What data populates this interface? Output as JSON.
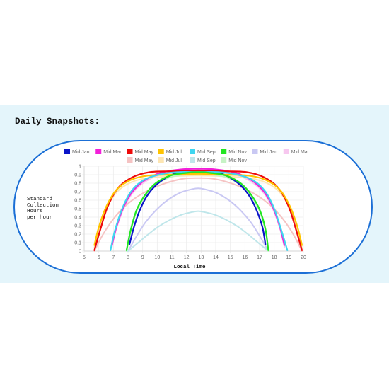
{
  "page": {
    "section_title": "Daily Snapshots:"
  },
  "chart_data": {
    "type": "line",
    "xlabel": "Local Time",
    "ylabel_lines": [
      "Standard",
      "Collection",
      "Hours",
      "per hour"
    ],
    "xlim": [
      5,
      20
    ],
    "ylim": [
      0,
      1
    ],
    "xticks": [
      5,
      6,
      7,
      8,
      9,
      10,
      11,
      12,
      13,
      14,
      15,
      16,
      17,
      18,
      19,
      20
    ],
    "yticks": [
      0,
      0.1,
      0.2,
      0.3,
      0.4,
      0.5,
      0.6,
      0.7,
      0.8,
      0.9,
      1.0
    ],
    "grid": true,
    "legend_position": "top",
    "series": [
      {
        "name": "Mid Jan",
        "color": "#0a14c8",
        "faded": false,
        "x": [
          8.1,
          8.4,
          8.8,
          9.3,
          10.0,
          11.0,
          12.0,
          12.8,
          13.6,
          14.6,
          15.6,
          16.3,
          16.8,
          17.2,
          17.4
        ],
        "y": [
          0.08,
          0.28,
          0.48,
          0.65,
          0.79,
          0.9,
          0.94,
          0.95,
          0.94,
          0.9,
          0.79,
          0.65,
          0.48,
          0.28,
          0.08
        ]
      },
      {
        "name": "Mid Mar",
        "color": "#f21fd9",
        "faded": false,
        "x": [
          6.9,
          7.2,
          7.7,
          8.3,
          9.1,
          10.2,
          11.5,
          12.8,
          14.1,
          15.4,
          16.5,
          17.3,
          17.9,
          18.4,
          18.7
        ],
        "y": [
          0.07,
          0.28,
          0.52,
          0.7,
          0.83,
          0.92,
          0.96,
          0.97,
          0.96,
          0.92,
          0.83,
          0.7,
          0.52,
          0.28,
          0.07
        ]
      },
      {
        "name": "Mid May",
        "color": "#ee0a0a",
        "faded": false,
        "x": [
          5.7,
          6.1,
          6.6,
          7.3,
          8.3,
          9.5,
          11.0,
          12.8,
          14.6,
          16.1,
          17.3,
          18.3,
          19.0,
          19.5,
          19.9
        ],
        "y": [
          0.01,
          0.25,
          0.52,
          0.74,
          0.87,
          0.93,
          0.94,
          0.95,
          0.94,
          0.93,
          0.87,
          0.74,
          0.52,
          0.25,
          0.01
        ]
      },
      {
        "name": "Mid Jul",
        "color": "#ffc400",
        "faded": false,
        "x": [
          5.7,
          6.0,
          6.5,
          7.2,
          8.2,
          9.4,
          10.9,
          12.8,
          14.7,
          16.2,
          17.4,
          18.4,
          19.1,
          19.6,
          19.9
        ],
        "y": [
          0.07,
          0.28,
          0.52,
          0.72,
          0.84,
          0.89,
          0.9,
          0.91,
          0.9,
          0.89,
          0.84,
          0.72,
          0.52,
          0.28,
          0.07
        ]
      },
      {
        "name": "Mid Sep",
        "color": "#3fd6f0",
        "faded": false,
        "x": [
          6.8,
          7.1,
          7.6,
          8.2,
          9.0,
          10.1,
          11.4,
          12.8,
          14.2,
          15.5,
          16.6,
          17.4,
          18.0,
          18.5,
          18.9
        ],
        "y": [
          0.01,
          0.24,
          0.5,
          0.7,
          0.83,
          0.9,
          0.93,
          0.93,
          0.93,
          0.9,
          0.83,
          0.7,
          0.5,
          0.24,
          0.01
        ]
      },
      {
        "name": "Mid Nov",
        "color": "#21e621",
        "faded": false,
        "x": [
          7.9,
          8.2,
          8.6,
          9.2,
          9.9,
          10.9,
          11.9,
          12.8,
          13.7,
          14.7,
          15.7,
          16.4,
          17.0,
          17.4,
          17.6
        ],
        "y": [
          0.01,
          0.26,
          0.49,
          0.67,
          0.8,
          0.89,
          0.92,
          0.93,
          0.92,
          0.89,
          0.8,
          0.67,
          0.49,
          0.26,
          0.01
        ]
      },
      {
        "name": "Mid Jan",
        "color": "#c9c8f3",
        "faded": true,
        "x": [
          8.0,
          8.6,
          9.2,
          9.9,
          10.7,
          11.6,
          12.4,
          12.8,
          13.2,
          14.0,
          14.9,
          15.7,
          16.4,
          17.0,
          17.6
        ],
        "y": [
          0.0,
          0.18,
          0.34,
          0.48,
          0.6,
          0.69,
          0.73,
          0.74,
          0.73,
          0.69,
          0.6,
          0.48,
          0.34,
          0.18,
          0.0
        ]
      },
      {
        "name": "Mid Mar",
        "color": "#f7c7ef",
        "faded": true,
        "x": [
          6.9,
          7.2,
          7.7,
          8.3,
          9.1,
          10.2,
          11.5,
          12.8,
          14.1,
          15.4,
          16.5,
          17.3,
          17.9,
          18.4,
          18.7
        ],
        "y": [
          0.05,
          0.26,
          0.5,
          0.68,
          0.81,
          0.9,
          0.94,
          0.95,
          0.94,
          0.9,
          0.81,
          0.68,
          0.5,
          0.26,
          0.05
        ]
      },
      {
        "name": "Mid May",
        "color": "#f5c3c3",
        "faded": true,
        "x": [
          5.7,
          6.3,
          7.1,
          8.0,
          9.1,
          10.4,
          11.7,
          12.8,
          13.9,
          15.2,
          16.5,
          17.6,
          18.5,
          19.3,
          19.9
        ],
        "y": [
          0.0,
          0.2,
          0.4,
          0.56,
          0.69,
          0.79,
          0.85,
          0.86,
          0.85,
          0.79,
          0.69,
          0.56,
          0.4,
          0.2,
          0.0
        ]
      },
      {
        "name": "Mid Jul",
        "color": "#fde6b3",
        "faded": true,
        "x": [
          5.7,
          6.0,
          6.5,
          7.2,
          8.2,
          9.4,
          10.9,
          12.8,
          14.7,
          16.2,
          17.4,
          18.4,
          19.1,
          19.6,
          19.9
        ],
        "y": [
          0.04,
          0.25,
          0.49,
          0.69,
          0.81,
          0.86,
          0.88,
          0.89,
          0.88,
          0.86,
          0.81,
          0.69,
          0.49,
          0.25,
          0.04
        ]
      },
      {
        "name": "Mid Sep",
        "color": "#bfe6ea",
        "faded": true,
        "x": [
          8.0,
          8.7,
          9.4,
          10.1,
          10.9,
          11.7,
          12.4,
          12.8,
          13.2,
          13.9,
          14.7,
          15.5,
          16.2,
          16.9,
          17.6
        ],
        "y": [
          0.0,
          0.1,
          0.2,
          0.29,
          0.37,
          0.43,
          0.46,
          0.47,
          0.46,
          0.43,
          0.37,
          0.29,
          0.2,
          0.1,
          0.0
        ]
      },
      {
        "name": "Mid Nov",
        "color": "#c6f3c6",
        "faded": true,
        "x": [
          7.9,
          8.2,
          8.6,
          9.2,
          9.9,
          10.9,
          11.9,
          12.8,
          13.7,
          14.7,
          15.7,
          16.4,
          17.0,
          17.4,
          17.6
        ],
        "y": [
          0.0,
          0.24,
          0.47,
          0.65,
          0.78,
          0.87,
          0.9,
          0.91,
          0.9,
          0.87,
          0.78,
          0.65,
          0.47,
          0.24,
          0.0
        ]
      }
    ]
  }
}
